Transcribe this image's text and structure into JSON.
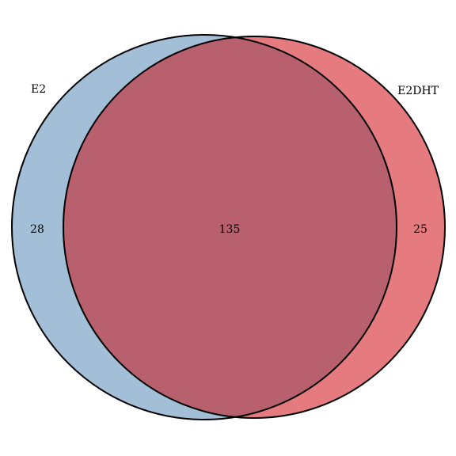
{
  "diagram": {
    "type": "venn",
    "sets": [
      {
        "name": "E2",
        "color": "#a3bfd8",
        "stroke": "#000000"
      },
      {
        "name": "E2DHT",
        "color": "#e57b7e",
        "stroke": "#000000"
      }
    ],
    "intersection_color": "#b8606d",
    "regions": {
      "only_left": "28",
      "both": "135",
      "only_right": "25"
    }
  }
}
